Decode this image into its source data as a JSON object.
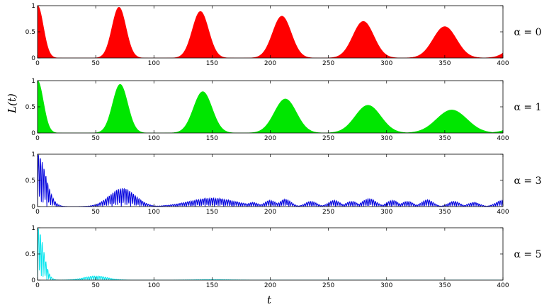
{
  "chart_data": {
    "type": "area",
    "xlabel": "t",
    "ylabel": "L(t)",
    "xlim": [
      0,
      400
    ],
    "ylim": [
      0,
      1
    ],
    "xticks": [
      0,
      50,
      100,
      150,
      200,
      250,
      300,
      350,
      400
    ],
    "yticks": [
      0,
      0.5,
      1
    ],
    "xtick_labels": [
      "0",
      "50",
      "100",
      "150",
      "200",
      "250",
      "300",
      "350",
      "400"
    ],
    "ytick_labels": [
      "0",
      "0.5",
      "1"
    ],
    "grid": false,
    "panels": [
      {
        "label": "α = 0",
        "color": "#ff0000",
        "style": "filled",
        "envelope_peaks": [
          {
            "t": 0,
            "height": 1.0,
            "width": 5
          },
          {
            "t": 70,
            "height": 0.97,
            "width": 6
          },
          {
            "t": 140,
            "height": 0.89,
            "width": 7
          },
          {
            "t": 210,
            "height": 0.8,
            "width": 8
          },
          {
            "t": 280,
            "height": 0.7,
            "width": 9
          },
          {
            "t": 350,
            "height": 0.6,
            "width": 10
          },
          {
            "t": 420,
            "height": 0.5,
            "width": 11
          }
        ]
      },
      {
        "label": "α = 1",
        "color": "#00e600",
        "style": "filled",
        "envelope_peaks": [
          {
            "t": 0,
            "height": 1.0,
            "width": 5
          },
          {
            "t": 71,
            "height": 0.93,
            "width": 6.5
          },
          {
            "t": 142,
            "height": 0.79,
            "width": 8
          },
          {
            "t": 213,
            "height": 0.65,
            "width": 9.5
          },
          {
            "t": 284,
            "height": 0.53,
            "width": 11
          },
          {
            "t": 356,
            "height": 0.44,
            "width": 13
          },
          {
            "t": 428,
            "height": 0.36,
            "width": 14
          }
        ]
      },
      {
        "label": "α = 3",
        "color": "#0000dd",
        "style": "oscillating",
        "envelope_peaks": [
          {
            "t": 0,
            "height": 1.0,
            "width": 7
          },
          {
            "t": 73,
            "height": 0.35,
            "width": 11
          },
          {
            "t": 150,
            "height": 0.16,
            "width": 20
          },
          {
            "t": 185,
            "height": 0.08,
            "width": 5
          },
          {
            "t": 200,
            "height": 0.12,
            "width": 5
          },
          {
            "t": 213,
            "height": 0.14,
            "width": 5
          },
          {
            "t": 235,
            "height": 0.1,
            "width": 5
          },
          {
            "t": 255,
            "height": 0.12,
            "width": 5
          },
          {
            "t": 270,
            "height": 0.1,
            "width": 5
          },
          {
            "t": 285,
            "height": 0.15,
            "width": 6
          },
          {
            "t": 305,
            "height": 0.12,
            "width": 5
          },
          {
            "t": 318,
            "height": 0.1,
            "width": 5
          },
          {
            "t": 335,
            "height": 0.13,
            "width": 5
          },
          {
            "t": 358,
            "height": 0.1,
            "width": 5
          },
          {
            "t": 375,
            "height": 0.08,
            "width": 5
          },
          {
            "t": 400,
            "height": 0.12,
            "width": 6
          }
        ]
      },
      {
        "label": "α = 5",
        "color": "#00e5ee",
        "style": "oscillating",
        "envelope_peaks": [
          {
            "t": 0,
            "height": 1.0,
            "width": 5
          },
          {
            "t": 50,
            "height": 0.08,
            "width": 10
          },
          {
            "t": 150,
            "height": 0.01,
            "width": 15
          }
        ]
      }
    ]
  }
}
